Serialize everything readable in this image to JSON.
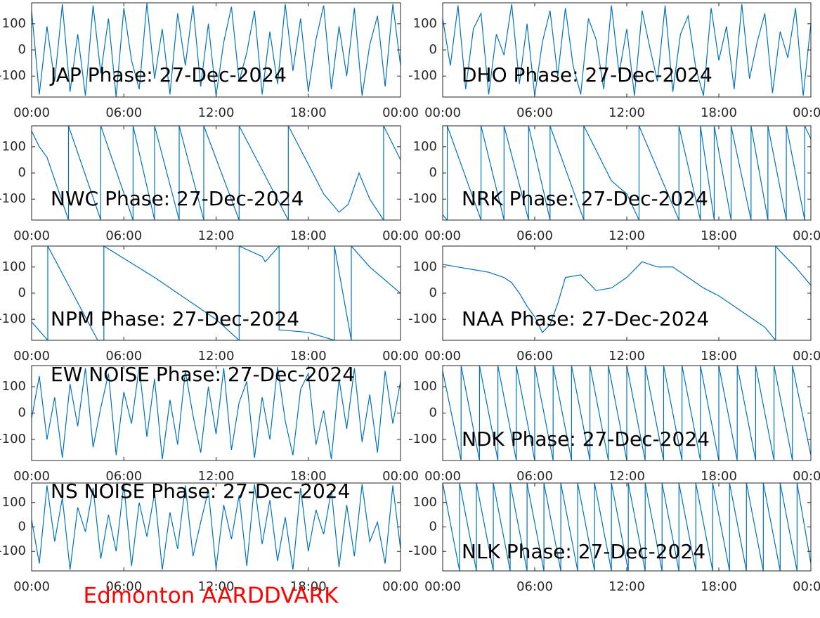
{
  "chart_data": [
    {
      "type": "line",
      "title": "JAP Phase: 27-Dec-2024",
      "color": "#0072bd",
      "xlim": [
        0,
        24
      ],
      "ylim": [
        -180,
        180
      ],
      "yticks": [
        -100,
        0,
        100
      ],
      "xticks": [
        {
          "value": 0,
          "label": "00:00"
        },
        {
          "value": 6,
          "label": "06:00"
        },
        {
          "value": 12,
          "label": "12:00"
        },
        {
          "value": 18,
          "label": "18:00"
        },
        {
          "value": 24,
          "label": "00:00"
        }
      ],
      "x": [
        0,
        0.5,
        1,
        1.5,
        2,
        2.5,
        3,
        3.5,
        4,
        4.5,
        5,
        5.5,
        6,
        6.5,
        7,
        7.5,
        8,
        8.5,
        9,
        9.5,
        10,
        10.5,
        11,
        11.5,
        12,
        12.5,
        13,
        13.5,
        14,
        14.5,
        15,
        15.5,
        16,
        16.5,
        17,
        17.5,
        18,
        18.5,
        19,
        19.5,
        20,
        20.5,
        21,
        21.5,
        22,
        22.5,
        23,
        23.5,
        24
      ],
      "values": [
        150,
        -170,
        90,
        -120,
        175,
        -160,
        60,
        -175,
        170,
        -90,
        120,
        -180,
        160,
        -40,
        -150,
        178,
        -110,
        80,
        -170,
        140,
        -60,
        170,
        -140,
        100,
        -175,
        30,
        165,
        -120,
        -10,
        150,
        -170,
        70,
        -130,
        175,
        -80,
        120,
        -160,
        40,
        170,
        -150,
        90,
        -100,
        160,
        -175,
        20,
        130,
        -140,
        175,
        -60
      ]
    },
    {
      "type": "line",
      "title": "DHO Phase: 27-Dec-2024",
      "color": "#0072bd",
      "xlim": [
        0,
        24
      ],
      "ylim": [
        -180,
        180
      ],
      "yticks": [
        -100,
        0,
        100
      ],
      "xticks": [
        {
          "value": 0,
          "label": "00:00"
        },
        {
          "value": 6,
          "label": "06:00"
        },
        {
          "value": 12,
          "label": "12:00"
        },
        {
          "value": 18,
          "label": "18:00"
        },
        {
          "value": 24,
          "label": "00:00"
        }
      ],
      "x": [
        0,
        0.5,
        1,
        1.5,
        2,
        2.5,
        3,
        3.5,
        4,
        4.5,
        5,
        5.5,
        6,
        6.5,
        7,
        7.5,
        8,
        8.5,
        9,
        9.5,
        10,
        10.5,
        11,
        11.5,
        12,
        12.5,
        13,
        13.5,
        14,
        14.5,
        15,
        15.5,
        16,
        16.5,
        17,
        17.5,
        18,
        18.5,
        19,
        19.5,
        20,
        20.5,
        21,
        21.5,
        22,
        22.5,
        23,
        23.5,
        24
      ],
      "values": [
        120,
        -60,
        170,
        -150,
        80,
        140,
        -170,
        60,
        -20,
        175,
        -130,
        100,
        -175,
        30,
        150,
        -100,
        160,
        -60,
        -170,
        120,
        40,
        -150,
        170,
        -90,
        80,
        -175,
        150,
        10,
        -120,
        170,
        -160,
        60,
        130,
        -70,
        -175,
        160,
        -40,
        90,
        -150,
        175,
        -110,
        30,
        140,
        -165,
        70,
        -30,
        160,
        -175,
        100
      ]
    },
    {
      "type": "line",
      "title": "NWC Phase: 27-Dec-2024",
      "color": "#0072bd",
      "xlim": [
        0,
        24
      ],
      "ylim": [
        -180,
        180
      ],
      "yticks": [
        -100,
        0,
        100
      ],
      "xticks": [
        {
          "value": 0,
          "label": "00:00"
        },
        {
          "value": 6,
          "label": "06:00"
        },
        {
          "value": 12,
          "label": "12:00"
        },
        {
          "value": 18,
          "label": "18:00"
        },
        {
          "value": 24,
          "label": "00:00"
        }
      ],
      "x": [
        0,
        0.5,
        1,
        2.4,
        2.4,
        4.5,
        4.5,
        6.6,
        6.6,
        8.0,
        8.0,
        9.6,
        9.6,
        11.2,
        11.2,
        13.5,
        13.5,
        16.7,
        16.7,
        19,
        20,
        20.6,
        21.3,
        22,
        22.9,
        22.9,
        24
      ],
      "values": [
        160,
        100,
        60,
        -180,
        180,
        -180,
        180,
        -180,
        180,
        -180,
        180,
        -180,
        180,
        -180,
        180,
        -180,
        180,
        -180,
        180,
        -80,
        -150,
        -120,
        0,
        -100,
        -180,
        180,
        50
      ]
    },
    {
      "type": "line",
      "title": "NRK Phase: 27-Dec-2024",
      "color": "#0072bd",
      "xlim": [
        0,
        24
      ],
      "ylim": [
        -180,
        180
      ],
      "yticks": [
        -100,
        0,
        100
      ],
      "xticks": [
        {
          "value": 0,
          "label": "00:00"
        },
        {
          "value": 6,
          "label": "06:00"
        },
        {
          "value": 12,
          "label": "12:00"
        },
        {
          "value": 18,
          "label": "18:00"
        },
        {
          "value": 24,
          "label": "00:00"
        }
      ],
      "x": [
        0,
        0.3,
        0.3,
        2.5,
        2.5,
        4.0,
        4.0,
        5.6,
        5.6,
        7.0,
        7.0,
        9.2,
        9.2,
        11,
        12,
        12.8,
        12.8,
        15.4,
        15.4,
        16.8,
        16.8,
        17.7,
        17.7,
        18.8,
        18.8,
        20.1,
        20.1,
        21.2,
        21.2,
        22.4,
        22.4,
        23.6,
        23.6,
        24
      ],
      "values": [
        -160,
        -180,
        180,
        -180,
        180,
        -180,
        180,
        -180,
        180,
        -180,
        180,
        -180,
        180,
        -30,
        -80,
        -180,
        180,
        -180,
        180,
        -180,
        180,
        -180,
        180,
        -180,
        180,
        -180,
        180,
        -180,
        180,
        -180,
        180,
        -180,
        180,
        130
      ]
    },
    {
      "type": "line",
      "title": "NPM Phase: 27-Dec-2024",
      "color": "#0072bd",
      "xlim": [
        0,
        24
      ],
      "ylim": [
        -180,
        180
      ],
      "yticks": [
        -100,
        0,
        100
      ],
      "xticks": [
        {
          "value": 0,
          "label": "00:00"
        },
        {
          "value": 6,
          "label": "06:00"
        },
        {
          "value": 12,
          "label": "12:00"
        },
        {
          "value": 18,
          "label": "18:00"
        },
        {
          "value": 24,
          "label": "00:00"
        }
      ],
      "x": [
        0,
        1.05,
        1.05,
        4.3,
        4.7,
        4.7,
        8,
        12,
        13.5,
        13.5,
        15,
        15.2,
        16.1,
        16.1,
        18,
        19.7,
        19.7,
        20.8,
        20.8,
        22,
        24
      ],
      "values": [
        -110,
        -180,
        180,
        -180,
        -180,
        180,
        60,
        -100,
        -180,
        180,
        140,
        120,
        180,
        -140,
        -150,
        -180,
        180,
        -180,
        180,
        100,
        0
      ]
    },
    {
      "type": "line",
      "title": "NAA Phase: 27-Dec-2024",
      "color": "#0072bd",
      "xlim": [
        0,
        24
      ],
      "ylim": [
        -180,
        180
      ],
      "yticks": [
        -100,
        0,
        100
      ],
      "xticks": [
        {
          "value": 0,
          "label": "00:00"
        },
        {
          "value": 6,
          "label": "06:00"
        },
        {
          "value": 12,
          "label": "12:00"
        },
        {
          "value": 18,
          "label": "18:00"
        },
        {
          "value": 24,
          "label": "00:00"
        }
      ],
      "x": [
        0,
        1,
        2,
        3,
        4,
        4.5,
        5,
        5.5,
        6,
        6.5,
        7,
        7.5,
        8,
        9,
        10,
        11,
        11.5,
        12,
        13,
        14,
        15,
        16,
        17,
        18,
        19,
        20,
        21,
        21.7,
        21.7,
        22,
        23,
        24
      ],
      "values": [
        110,
        100,
        90,
        80,
        60,
        40,
        0,
        -50,
        -90,
        -150,
        -120,
        -40,
        60,
        70,
        10,
        20,
        40,
        60,
        120,
        100,
        100,
        60,
        20,
        -10,
        -50,
        -90,
        -130,
        -180,
        180,
        160,
        100,
        30
      ]
    },
    {
      "type": "line",
      "title": "EW NOISE Phase: 27-Dec-2024",
      "color": "#0072bd",
      "xlim": [
        0,
        24
      ],
      "ylim": [
        -180,
        180
      ],
      "yticks": [
        -100,
        0,
        100
      ],
      "xticks": [
        {
          "value": 0,
          "label": "00:00"
        },
        {
          "value": 6,
          "label": "06:00"
        },
        {
          "value": 12,
          "label": "12:00"
        },
        {
          "value": 18,
          "label": "18:00"
        },
        {
          "value": 24,
          "label": "00:00"
        }
      ],
      "x": [
        0,
        0.5,
        1,
        1.5,
        2,
        2.5,
        3,
        3.5,
        4,
        4.5,
        5,
        5.5,
        6,
        6.5,
        7,
        7.5,
        8,
        8.5,
        9,
        9.5,
        10,
        10.5,
        11,
        11.5,
        12,
        12.5,
        13,
        13.5,
        14,
        14.5,
        15,
        15.5,
        16,
        16.5,
        17,
        17.5,
        18,
        18.5,
        19,
        19.5,
        20,
        20.5,
        21,
        21.5,
        22,
        22.5,
        23,
        23.5,
        24
      ],
      "values": [
        -20,
        140,
        -100,
        60,
        -170,
        110,
        -50,
        170,
        -130,
        20,
        150,
        -160,
        80,
        -40,
        175,
        -90,
        130,
        -175,
        50,
        -120,
        160,
        -10,
        -150,
        100,
        -80,
        170,
        -140,
        40,
        120,
        -170,
        60,
        -100,
        175,
        -30,
        -160,
        90,
        150,
        -120,
        10,
        -175,
        130,
        -60,
        170,
        -110,
        70,
        -150,
        160,
        -40,
        120
      ]
    },
    {
      "type": "line",
      "title": "NDK Phase: 27-Dec-2024",
      "color": "#0072bd",
      "xlim": [
        0,
        24
      ],
      "ylim": [
        -180,
        180
      ],
      "yticks": [
        -100,
        0,
        100
      ],
      "xticks": [
        {
          "value": 0,
          "label": "00:00"
        },
        {
          "value": 6,
          "label": "06:00"
        },
        {
          "value": 12,
          "label": "12:00"
        },
        {
          "value": 18,
          "label": "18:00"
        },
        {
          "value": 24,
          "label": "00:00"
        }
      ],
      "x": [
        0,
        1.2,
        1.2,
        2.4,
        2.4,
        3.6,
        3.6,
        4.8,
        4.8,
        6,
        6,
        7.2,
        7.2,
        8.4,
        8.4,
        9.6,
        9.6,
        10.8,
        10.8,
        12,
        12,
        13.2,
        13.2,
        14.4,
        14.4,
        15.6,
        15.6,
        16.8,
        16.8,
        18,
        18,
        19.2,
        19.2,
        20.4,
        20.4,
        21.6,
        21.6,
        22.8,
        22.8,
        24
      ],
      "values": [
        160,
        -180,
        180,
        -180,
        180,
        -180,
        180,
        -180,
        180,
        -180,
        180,
        -180,
        180,
        -180,
        180,
        -180,
        180,
        -180,
        180,
        -180,
        180,
        -180,
        180,
        -180,
        180,
        -180,
        180,
        -180,
        180,
        -180,
        180,
        -180,
        180,
        -180,
        180,
        -180,
        180,
        -180,
        180,
        -160
      ]
    },
    {
      "type": "line",
      "title": "NS NOISE Phase: 27-Dec-2024",
      "color": "#0072bd",
      "xlim": [
        0,
        24
      ],
      "ylim": [
        -180,
        180
      ],
      "yticks": [
        -100,
        0,
        100
      ],
      "xticks": [
        {
          "value": 0,
          "label": "00:00"
        },
        {
          "value": 6,
          "label": "06:00"
        },
        {
          "value": 12,
          "label": "12:00"
        },
        {
          "value": 18,
          "label": "18:00"
        },
        {
          "value": 24,
          "label": "00:00"
        }
      ],
      "x": [
        0,
        0.5,
        1,
        1.5,
        2,
        2.5,
        3,
        3.5,
        4,
        4.5,
        5,
        5.5,
        6,
        6.5,
        7,
        7.5,
        8,
        8.5,
        9,
        9.5,
        10,
        10.5,
        11,
        11.5,
        12,
        12.5,
        13,
        13.5,
        14,
        14.5,
        15,
        15.5,
        16,
        16.5,
        17,
        17.5,
        18,
        18.5,
        19,
        19.5,
        20,
        20.5,
        21,
        21.5,
        22,
        22.5,
        23,
        23.5,
        24
      ],
      "values": [
        30,
        -150,
        170,
        -60,
        120,
        -175,
        80,
        -20,
        160,
        -130,
        50,
        -100,
        175,
        -160,
        100,
        -40,
        140,
        -175,
        60,
        -90,
        170,
        -120,
        20,
        150,
        -170,
        90,
        -50,
        130,
        -160,
        175,
        -70,
        110,
        -140,
        40,
        -175,
        160,
        -100,
        70,
        -30,
        150,
        -165,
        90,
        -120,
        175,
        -60,
        20,
        -150,
        170,
        -90
      ]
    },
    {
      "type": "line",
      "title": "NLK Phase: 27-Dec-2024",
      "color": "#0072bd",
      "xlim": [
        0,
        24
      ],
      "ylim": [
        -180,
        180
      ],
      "yticks": [
        -100,
        0,
        100
      ],
      "xticks": [
        {
          "value": 0,
          "label": "00:00"
        },
        {
          "value": 6,
          "label": "06:00"
        },
        {
          "value": 12,
          "label": "12:00"
        },
        {
          "value": 18,
          "label": "18:00"
        },
        {
          "value": 24,
          "label": "00:00"
        }
      ],
      "x": [
        0,
        1.1,
        1.1,
        2.2,
        2.2,
        3.3,
        3.3,
        4.4,
        4.4,
        5.5,
        5.5,
        6.6,
        6.6,
        7.7,
        7.7,
        8.8,
        8.8,
        9.9,
        9.9,
        11,
        11,
        12.1,
        12.1,
        13.2,
        13.2,
        14.3,
        14.3,
        15.4,
        15.4,
        16.5,
        16.5,
        17.6,
        17.6,
        18.7,
        18.7,
        19.8,
        19.8,
        20.9,
        20.9,
        22,
        22,
        23.1,
        23.1,
        24
      ],
      "values": [
        180,
        -180,
        180,
        -180,
        180,
        -180,
        180,
        -180,
        180,
        -180,
        180,
        -180,
        180,
        -180,
        180,
        -180,
        180,
        -180,
        180,
        -180,
        180,
        -180,
        180,
        -180,
        180,
        -180,
        180,
        -180,
        180,
        -180,
        180,
        -180,
        180,
        -180,
        180,
        -180,
        180,
        -180,
        180,
        -180,
        180,
        -180,
        180,
        -150
      ]
    }
  ],
  "footer": "Edmonton AARDDVARK"
}
